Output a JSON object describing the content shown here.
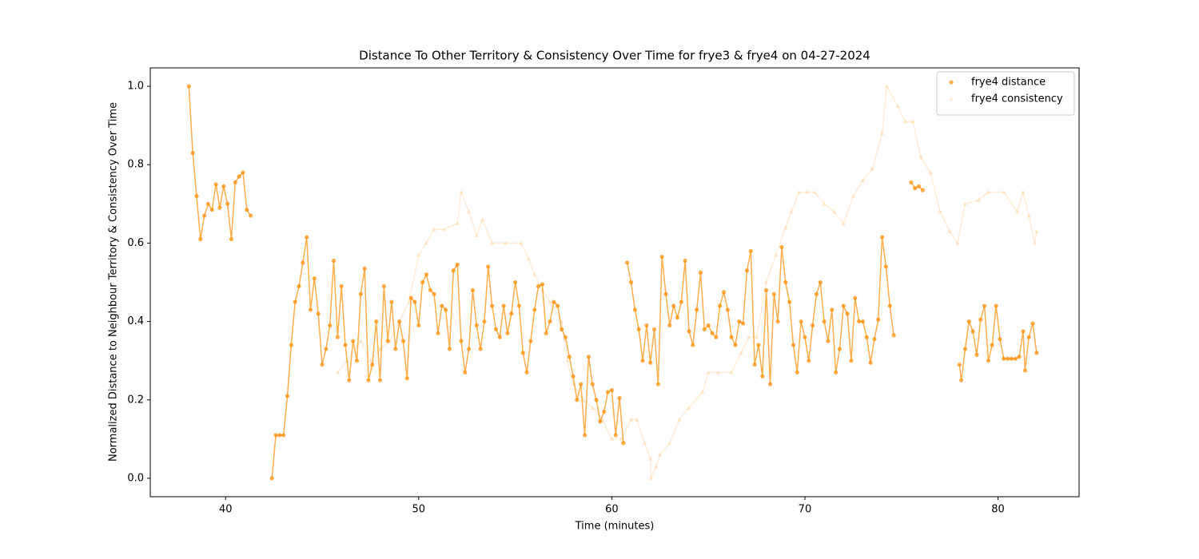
{
  "chart_data": {
    "type": "scatter",
    "title": "Distance To Other Territory & Consistency Over Time for frye3 & frye4 on 04-27-2024",
    "x_label": "Time (minutes)",
    "y_label": "Normalized Distance to Neighbour Territory & Consistency Over Time",
    "xlim": [
      36.1,
      84.2
    ],
    "ylim": [
      -0.047,
      1.047
    ],
    "xticks": [
      40,
      50,
      60,
      70,
      80
    ],
    "yticks": [
      {
        "value": 0,
        "label": "0.0"
      },
      {
        "value": 0.2,
        "label": "0.2"
      },
      {
        "value": 0.4,
        "label": "0.4"
      },
      {
        "value": 0.6,
        "label": "0.6"
      },
      {
        "value": 0.8,
        "label": "0.8"
      },
      {
        "value": 1,
        "label": "1.0"
      }
    ],
    "grid": false,
    "legend": "upper right",
    "series": [
      {
        "name": "frye4 distance",
        "color": "#ff8c00",
        "opacity": 0.7,
        "marker": "circle",
        "x": [
          38.1,
          38.3,
          38.5,
          38.7,
          38.9,
          39.1,
          39.3,
          39.5,
          39.7,
          39.9,
          40.1,
          40.3,
          40.5,
          40.7,
          40.9,
          41.1,
          41.3,
          41.8,
          42.4,
          42.6,
          42.8,
          43,
          43.2,
          43.4,
          43.6,
          43.8,
          44,
          44.2,
          44.4,
          44.6,
          44.8,
          45,
          45.2,
          45.4,
          45.6,
          45.8,
          46,
          46.2,
          46.4,
          46.6,
          46.8,
          47,
          47.2,
          47.4,
          47.6,
          47.8,
          48,
          48.2,
          48.4,
          48.6,
          48.8,
          49,
          49.2,
          49.4,
          49.6,
          49.8,
          50,
          50.2,
          50.4,
          50.6,
          50.8,
          51,
          51.2,
          51.4,
          51.6,
          51.8,
          52,
          52.2,
          52.4,
          52.6,
          52.8,
          53,
          53.2,
          53.4,
          53.6,
          53.8,
          54,
          54.2,
          54.4,
          54.6,
          54.8,
          55,
          55.2,
          55.4,
          55.6,
          55.8,
          56,
          56.2,
          56.4,
          56.6,
          56.8,
          57,
          57.2,
          57.4,
          57.6,
          57.8,
          58,
          58.2,
          58.4,
          58.6,
          58.8,
          59,
          59.2,
          59.4,
          59.6,
          59.8,
          60,
          60.2,
          60.4,
          60.6,
          60.7,
          60.8,
          61,
          61.2,
          61.4,
          61.6,
          61.8,
          62,
          62.2,
          62.4,
          62.6,
          62.8,
          63,
          63.2,
          63.4,
          63.6,
          63.8,
          64,
          64.2,
          64.4,
          64.6,
          64.8,
          65,
          65.2,
          65.4,
          65.6,
          65.8,
          66,
          66.2,
          66.4,
          66.6,
          66.8,
          67,
          67.2,
          67.4,
          67.6,
          67.8,
          68,
          68.2,
          68.4,
          68.6,
          68.8,
          69,
          69.2,
          69.4,
          69.6,
          69.8,
          70,
          70.2,
          70.4,
          70.6,
          70.8,
          71,
          71.2,
          71.4,
          71.6,
          71.8,
          72,
          72.2,
          72.4,
          72.6,
          72.8,
          73,
          73.2,
          73.4,
          73.6,
          73.8,
          74,
          74.2,
          74.4,
          74.6,
          75,
          75.5,
          75.7,
          75.9,
          76.1,
          77,
          78,
          78.1,
          78.3,
          78.5,
          78.7,
          78.9,
          79.1,
          79.3,
          79.5,
          79.7,
          79.9,
          80.1,
          80.3,
          80.5,
          80.7,
          80.9,
          81.1,
          81.3,
          81.4,
          81.6,
          81.8,
          82
        ],
        "values": [
          1.0,
          0.83,
          0.72,
          0.61,
          0.67,
          0.7,
          0.685,
          0.75,
          0.69,
          0.745,
          0.7,
          0.61,
          0.755,
          0.77,
          0.78,
          0.685,
          0.67,
          null,
          0.0,
          0.11,
          0.11,
          0.11,
          0.21,
          0.34,
          0.45,
          0.49,
          0.55,
          0.615,
          0.43,
          0.51,
          0.42,
          0.29,
          0.33,
          0.39,
          0.555,
          0.36,
          0.49,
          0.34,
          0.25,
          0.35,
          0.3,
          0.47,
          0.535,
          0.25,
          0.29,
          0.4,
          0.25,
          0.49,
          0.35,
          0.45,
          0.33,
          0.4,
          0.35,
          0.255,
          0.46,
          0.45,
          0.39,
          0.5,
          0.52,
          0.48,
          0.47,
          0.37,
          0.44,
          0.43,
          0.33,
          0.53,
          0.545,
          0.35,
          0.27,
          0.33,
          0.48,
          0.39,
          0.33,
          0.4,
          0.54,
          0.44,
          0.38,
          0.36,
          0.44,
          0.37,
          0.42,
          0.5,
          0.44,
          0.32,
          0.27,
          0.35,
          0.43,
          0.49,
          0.495,
          0.37,
          0.4,
          0.45,
          0.44,
          0.38,
          0.36,
          0.31,
          0.26,
          0.2,
          0.24,
          0.11,
          0.31,
          0.24,
          0.2,
          0.145,
          0.17,
          0.22,
          0.225,
          0.11,
          0.205,
          0.09,
          null,
          0.55,
          0.5,
          0.43,
          0.38,
          0.3,
          0.39,
          0.295,
          0.38,
          0.24,
          0.565,
          0.47,
          0.39,
          0.44,
          0.41,
          0.45,
          0.555,
          0.375,
          0.34,
          0.43,
          0.525,
          0.38,
          0.39,
          0.37,
          0.36,
          0.44,
          0.475,
          0.43,
          0.36,
          0.34,
          0.4,
          0.395,
          0.53,
          0.58,
          0.29,
          0.34,
          0.26,
          0.48,
          0.24,
          0.47,
          0.4,
          0.59,
          0.5,
          0.45,
          0.34,
          0.27,
          0.4,
          0.36,
          0.3,
          0.39,
          0.47,
          0.5,
          0.4,
          0.35,
          0.43,
          0.27,
          0.33,
          0.44,
          0.42,
          0.3,
          0.46,
          0.4,
          0.4,
          0.36,
          0.295,
          0.355,
          0.405,
          0.615,
          0.54,
          0.44,
          0.365,
          null,
          0.755,
          0.74,
          0.745,
          0.735,
          null,
          0.29,
          0.25,
          0.33,
          0.4,
          0.375,
          0.315,
          0.405,
          0.44,
          0.3,
          0.34,
          0.44,
          0.355,
          0.305,
          0.305,
          0.305,
          0.305,
          0.31,
          0.375,
          0.275,
          0.36,
          0.395,
          0.32
        ]
      },
      {
        "name": "frye4 consistency",
        "color": "#ff8c00",
        "opacity": 0.15,
        "marker": "triangle",
        "x": [
          45.8,
          46.3,
          47,
          47.5,
          48,
          48.5,
          49,
          49.5,
          50,
          50.4,
          50.8,
          51.3,
          52,
          52.2,
          52.6,
          53,
          53.3,
          53.8,
          54.5,
          55.3,
          55.7,
          56,
          56.4,
          56.8,
          57.4,
          57.7,
          58,
          58.5,
          59,
          59.5,
          60,
          60.5,
          61,
          61.3,
          61.7,
          62,
          62.03,
          62.3,
          62.5,
          63,
          63.5,
          64,
          64.7,
          65,
          65.5,
          66.2,
          66.7,
          67.1,
          67.5,
          68,
          68.5,
          69,
          69.3,
          69.7,
          70.1,
          70.5,
          71,
          71.5,
          72,
          72.5,
          73,
          73.5,
          74,
          74.24,
          74.8,
          75.2,
          75.6,
          76,
          76.5,
          77,
          77.5,
          77.9,
          78.3,
          79,
          79.5,
          80.3,
          81,
          81.3,
          81.6,
          81.9,
          82
        ],
        "values": [
          0.27,
          0.3,
          0.35,
          0.3,
          0.33,
          0.35,
          0.4,
          0.45,
          0.57,
          0.6,
          0.635,
          0.635,
          0.65,
          0.73,
          0.68,
          0.62,
          0.66,
          0.6,
          0.6,
          0.6,
          0.56,
          0.52,
          0.48,
          0.45,
          0.4,
          0.3,
          0.24,
          0.2,
          0.18,
          0.15,
          0.1,
          0.1,
          0.15,
          0.15,
          0.09,
          0.05,
          0.0,
          0.03,
          0.06,
          0.09,
          0.15,
          0.18,
          0.22,
          0.27,
          0.27,
          0.27,
          0.32,
          0.36,
          0.36,
          0.5,
          0.57,
          0.64,
          0.68,
          0.73,
          0.73,
          0.73,
          0.7,
          0.68,
          0.65,
          0.72,
          0.76,
          0.79,
          0.88,
          1.0,
          0.95,
          0.91,
          0.91,
          0.82,
          0.78,
          0.68,
          0.63,
          0.6,
          0.7,
          0.71,
          0.73,
          0.73,
          0.68,
          0.73,
          0.67,
          0.6,
          0.63
        ]
      }
    ]
  }
}
